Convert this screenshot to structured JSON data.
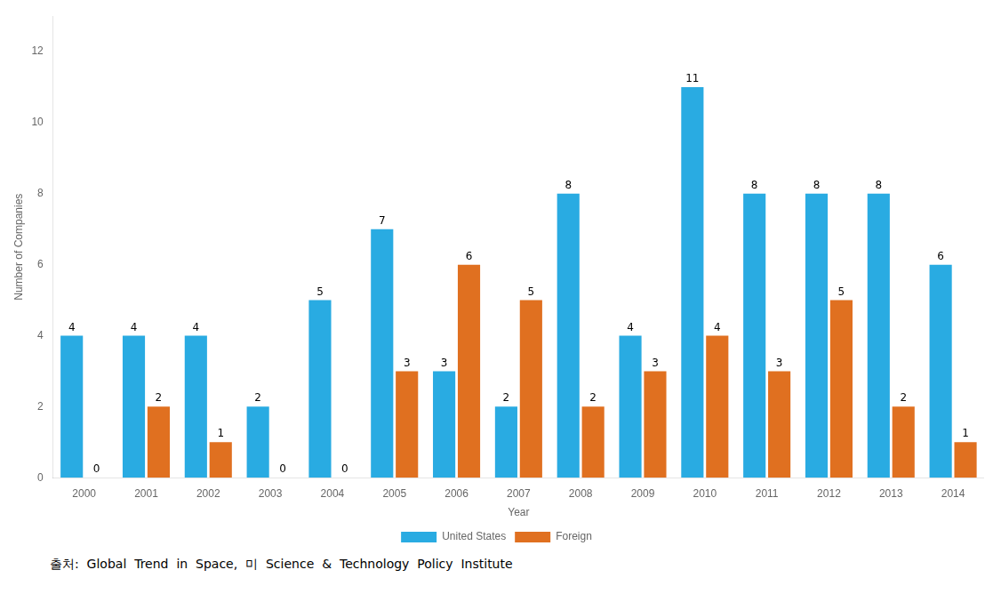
{
  "chart_data": {
    "type": "bar",
    "categories": [
      "2000",
      "2001",
      "2002",
      "2003",
      "2004",
      "2005",
      "2006",
      "2007",
      "2008",
      "2009",
      "2010",
      "2011",
      "2012",
      "2013",
      "2014"
    ],
    "series": [
      {
        "name": "United States",
        "color": "#29ABE2",
        "values": [
          4,
          4,
          4,
          2,
          5,
          7,
          3,
          2,
          8,
          4,
          11,
          8,
          8,
          8,
          6
        ]
      },
      {
        "name": "Foreign",
        "color": "#E07020",
        "values": [
          0,
          2,
          1,
          0,
          0,
          3,
          6,
          5,
          2,
          3,
          4,
          3,
          5,
          2,
          1
        ]
      }
    ],
    "xlabel": "Year",
    "ylabel": "Number of Companies",
    "ylim": [
      0,
      13
    ],
    "yticks": [
      0,
      2,
      4,
      6,
      8,
      10,
      12
    ],
    "grid": false,
    "legend": "bottom",
    "data_labels": true,
    "annotations": [
      "출처:  Global  Trend  in  Space,  미  Science  &  Technology  Policy  Institute"
    ]
  }
}
